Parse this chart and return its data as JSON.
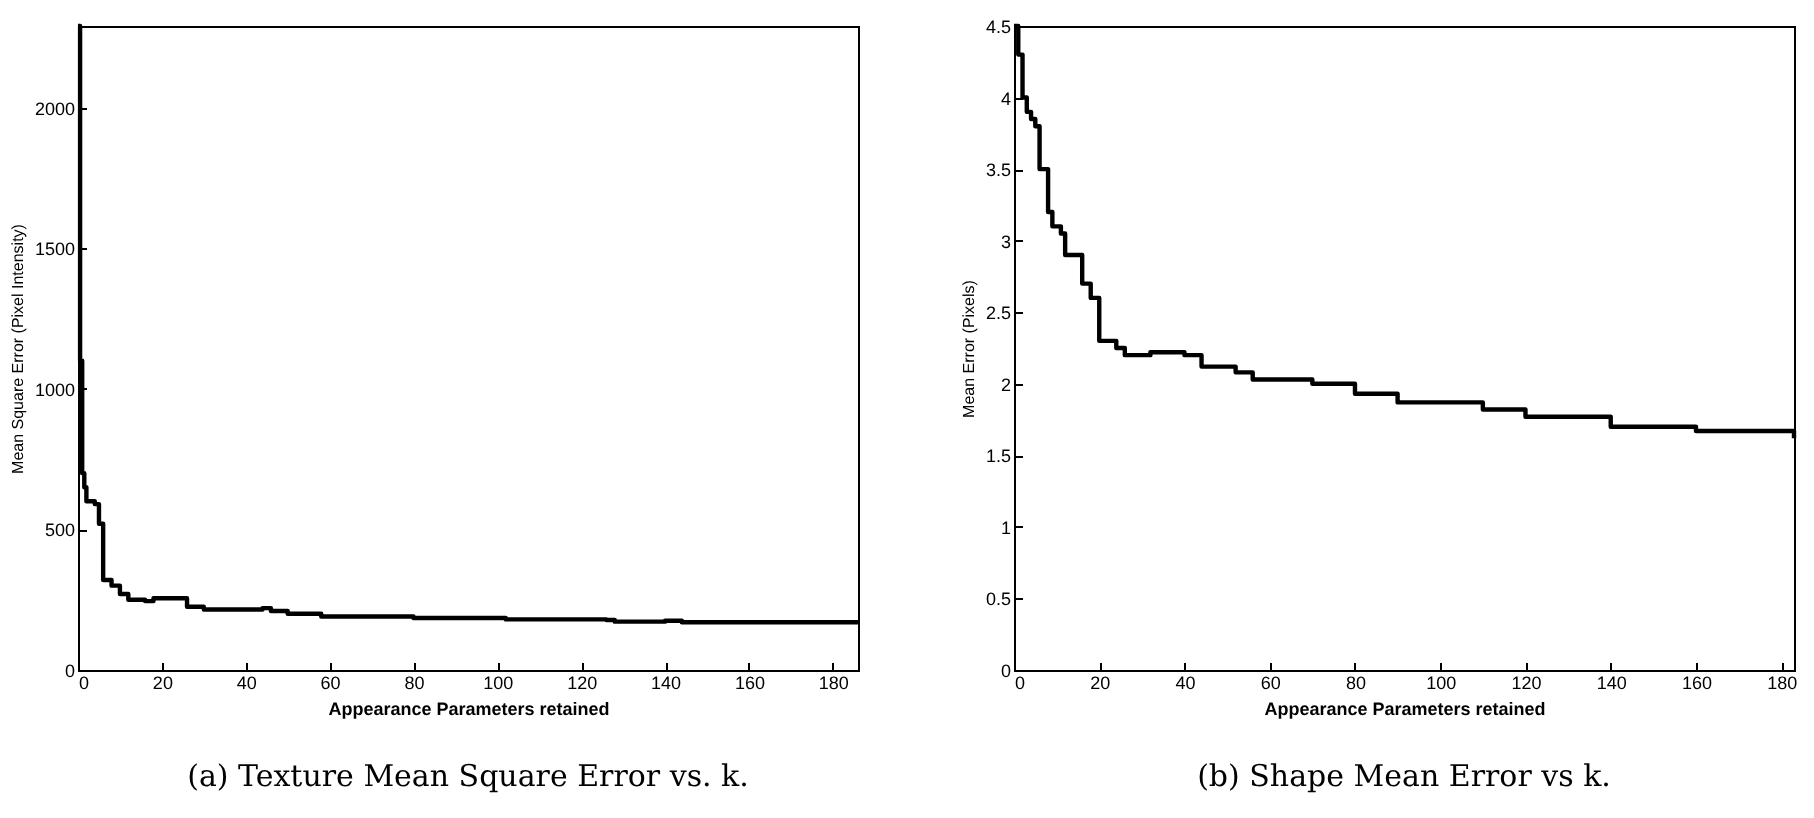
{
  "chart_data": [
    {
      "type": "step",
      "title": "(a) Texture Mean Square Error vs. k.",
      "xlabel": "Appearance Parameters retained",
      "ylabel": "Mean Square Error (Pixel Intensity)",
      "grid": false,
      "marker": "none",
      "line_style": "solid",
      "xlim": [
        0,
        186
      ],
      "xticks": [
        0,
        20,
        40,
        60,
        80,
        100,
        120,
        140,
        160,
        180
      ],
      "ylim": [
        0,
        2290
      ],
      "yticks": [
        0,
        500,
        1000,
        1500,
        2000
      ],
      "series": [
        {
          "color": "#000000",
          "x": [
            0,
            0.5,
            1,
            1.5,
            2,
            4,
            5,
            6,
            8,
            10,
            12,
            16,
            18,
            24,
            26,
            30,
            44,
            46,
            50,
            58,
            80,
            100,
            102,
            126,
            128,
            140,
            144,
            186
          ],
          "values": [
            2290,
            1100,
            700,
            650,
            600,
            590,
            520,
            320,
            300,
            270,
            250,
            245,
            255,
            255,
            225,
            215,
            220,
            210,
            200,
            190,
            185,
            185,
            180,
            178,
            172,
            175,
            170,
            170
          ]
        }
      ]
    },
    {
      "type": "step",
      "title": "(b) Shape Mean Error vs k.",
      "xlabel": "Appearance Parameters retained",
      "ylabel": "Mean Error (Pixels)",
      "grid": false,
      "marker": "none",
      "line_style": "solid",
      "xlim": [
        0,
        183
      ],
      "xticks": [
        0,
        20,
        40,
        60,
        80,
        100,
        120,
        140,
        160,
        180
      ],
      "ylim": [
        0,
        4.5
      ],
      "yticks": [
        0,
        0.5,
        1,
        1.5,
        2,
        2.5,
        3,
        3.5,
        4,
        4.5
      ],
      "series": [
        {
          "color": "#000000",
          "x": [
            0,
            1,
            2,
            3,
            4,
            5,
            6,
            8,
            9,
            11,
            12,
            16,
            18,
            20,
            24,
            26,
            32,
            40,
            44,
            52,
            56,
            70,
            80,
            90,
            110,
            120,
            140,
            160,
            183
          ],
          "values": [
            4.5,
            4.3,
            4.0,
            3.9,
            3.85,
            3.8,
            3.5,
            3.2,
            3.1,
            3.05,
            2.9,
            2.7,
            2.6,
            2.3,
            2.25,
            2.2,
            2.22,
            2.2,
            2.12,
            2.08,
            2.03,
            2.0,
            1.93,
            1.87,
            1.82,
            1.77,
            1.7,
            1.67,
            1.62
          ]
        }
      ]
    }
  ]
}
